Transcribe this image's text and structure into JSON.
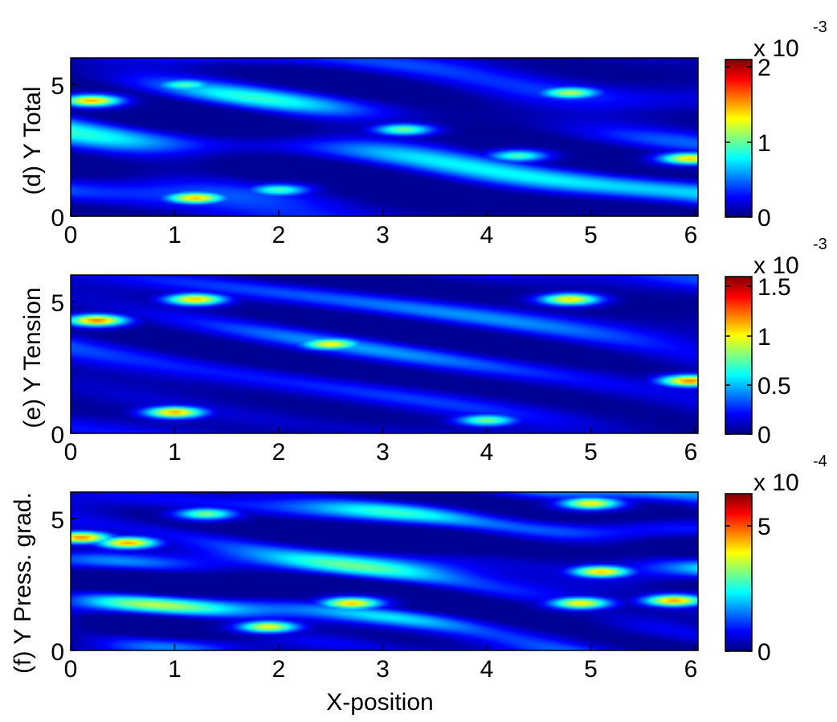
{
  "figure": {
    "xlabel": "X-position"
  },
  "chart_data": [
    {
      "type": "heatmap",
      "ylabel": "(d) Y Total",
      "x_ticks": [
        "0",
        "1",
        "2",
        "3",
        "4",
        "5",
        "6"
      ],
      "y_ticks": [
        "0",
        "5"
      ],
      "xlim": [
        0,
        6.03
      ],
      "ylim": [
        0,
        6.03
      ],
      "colormap": "jet",
      "colorbar": {
        "ticks": [
          "0",
          "1",
          "2"
        ],
        "tick_values": [
          0,
          1,
          2
        ],
        "range": [
          0,
          2.1
        ],
        "multiplier_base": "x 10",
        "multiplier_exp": "-3"
      },
      "hotspots": [
        {
          "x": 0.2,
          "y": 4.4,
          "value": 1.9
        },
        {
          "x": 1.2,
          "y": 0.7,
          "value": 1.85
        },
        {
          "x": 5.95,
          "y": 2.2,
          "value": 1.8
        },
        {
          "x": 3.2,
          "y": 3.3,
          "value": 1.3
        },
        {
          "x": 4.8,
          "y": 4.7,
          "value": 1.5
        },
        {
          "x": 1.1,
          "y": 5.0,
          "value": 1.2
        },
        {
          "x": 2.0,
          "y": 1.0,
          "value": 1.2
        },
        {
          "x": 4.3,
          "y": 2.3,
          "value": 1.2
        }
      ]
    },
    {
      "type": "heatmap",
      "ylabel": "(e) Y Tension",
      "x_ticks": [
        "0",
        "1",
        "2",
        "3",
        "4",
        "5",
        "6"
      ],
      "y_ticks": [
        "0",
        "5"
      ],
      "xlim": [
        0,
        6.03
      ],
      "ylim": [
        0,
        6.03
      ],
      "colormap": "jet",
      "colorbar": {
        "ticks": [
          "0",
          "0.5",
          "1",
          "1.5"
        ],
        "tick_values": [
          0,
          0.5,
          1,
          1.5
        ],
        "range": [
          0,
          1.6
        ],
        "multiplier_base": "x 10",
        "multiplier_exp": "-3"
      },
      "hotspots": [
        {
          "x": 0.25,
          "y": 4.3,
          "value": 1.55
        },
        {
          "x": 1.2,
          "y": 5.1,
          "value": 1.4
        },
        {
          "x": 1.0,
          "y": 0.8,
          "value": 1.45
        },
        {
          "x": 5.95,
          "y": 2.0,
          "value": 1.55
        },
        {
          "x": 4.8,
          "y": 5.1,
          "value": 1.35
        },
        {
          "x": 2.5,
          "y": 3.4,
          "value": 1.3
        },
        {
          "x": 4.0,
          "y": 0.5,
          "value": 1.0
        }
      ]
    },
    {
      "type": "heatmap",
      "ylabel": "(f) Y Press. grad.",
      "x_ticks": [
        "0",
        "1",
        "2",
        "3",
        "4",
        "5",
        "6"
      ],
      "y_ticks": [
        "0",
        "5"
      ],
      "xlim": [
        0,
        6.03
      ],
      "ylim": [
        0,
        6.03
      ],
      "colormap": "jet",
      "colorbar": {
        "ticks": [
          "0",
          "5"
        ],
        "tick_values": [
          0,
          5
        ],
        "range": [
          0,
          6.3
        ],
        "multiplier_base": "x 10",
        "multiplier_exp": "-4"
      },
      "hotspots": [
        {
          "x": 0.1,
          "y": 4.3,
          "value": 6.0
        },
        {
          "x": 0.55,
          "y": 4.1,
          "value": 5.8
        },
        {
          "x": 2.7,
          "y": 1.8,
          "value": 5.5
        },
        {
          "x": 5.1,
          "y": 3.0,
          "value": 5.5
        },
        {
          "x": 5.8,
          "y": 1.9,
          "value": 5.8
        },
        {
          "x": 4.9,
          "y": 1.8,
          "value": 5.2
        },
        {
          "x": 1.9,
          "y": 0.9,
          "value": 5.0
        },
        {
          "x": 5.0,
          "y": 5.6,
          "value": 5.2
        },
        {
          "x": 1.3,
          "y": 5.2,
          "value": 4.0
        }
      ]
    }
  ]
}
